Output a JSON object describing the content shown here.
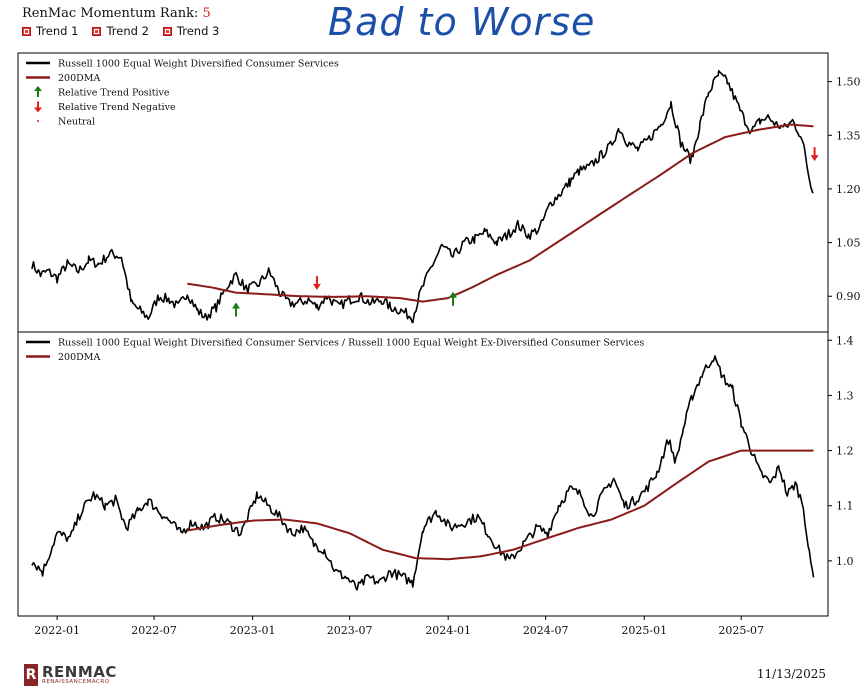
{
  "header": {
    "rank_label": "RenMac Momentum Rank:",
    "rank_value": "5",
    "trends": [
      "Trend 1",
      "Trend 2",
      "Trend 3"
    ],
    "annotation": "Bad to Worse"
  },
  "footer": {
    "logo_name": "RENMAC",
    "logo_sub": "RENAISSANCEMACRO",
    "date": "11/13/2025"
  },
  "colors": {
    "price": "#000000",
    "dma": "#8b1a1a",
    "positive": "#1a7a1a",
    "negative": "#e02020",
    "annotation": "#1c4fa8"
  },
  "chart_data": [
    {
      "type": "line",
      "legend": [
        {
          "label": "Russell 1000 Equal Weight Diversified Consumer Services",
          "style": "line",
          "color": "#000000"
        },
        {
          "label": "200DMA",
          "style": "line",
          "color": "#8b1a1a"
        },
        {
          "label": "Relative Trend Positive",
          "style": "up-arrow",
          "color": "#1a7a1a"
        },
        {
          "label": "Relative Trend Negative",
          "style": "down-arrow",
          "color": "#e02020"
        },
        {
          "label": "Neutral",
          "style": "dot",
          "color": "#e02020"
        }
      ],
      "legend_position": "top-left",
      "y_ticks": [
        "0.90",
        "1.05",
        "1.20",
        "1.35",
        "1.50"
      ],
      "y_tick_values": [
        0.9,
        1.05,
        1.2,
        1.35,
        1.5
      ],
      "ylim": [
        0.8,
        1.58
      ],
      "y_axis_side": "right",
      "series": [
        {
          "name": "Russell 1000 Equal Weight Diversified Consumer Services",
          "kind": "price",
          "points": [
            [
              "2021-11-15",
              0.99
            ],
            [
              "2021-12-01",
              0.96
            ],
            [
              "2021-12-15",
              0.97
            ],
            [
              "2022-01-01",
              0.95
            ],
            [
              "2022-01-20",
              0.99
            ],
            [
              "2022-02-10",
              0.97
            ],
            [
              "2022-03-01",
              1.0
            ],
            [
              "2022-03-20",
              0.99
            ],
            [
              "2022-04-10",
              1.02
            ],
            [
              "2022-05-01",
              1.01
            ],
            [
              "2022-05-20",
              0.88
            ],
            [
              "2022-06-05",
              0.86
            ],
            [
              "2022-06-20",
              0.84
            ],
            [
              "2022-07-10",
              0.9
            ],
            [
              "2022-07-30",
              0.89
            ],
            [
              "2022-08-15",
              0.87
            ],
            [
              "2022-09-01",
              0.91
            ],
            [
              "2022-09-20",
              0.86
            ],
            [
              "2022-10-05",
              0.84
            ],
            [
              "2022-10-25",
              0.87
            ],
            [
              "2022-11-15",
              0.93
            ],
            [
              "2022-12-01",
              0.96
            ],
            [
              "2022-12-20",
              0.92
            ],
            [
              "2023-01-10",
              0.93
            ],
            [
              "2023-02-01",
              0.97
            ],
            [
              "2023-02-20",
              0.91
            ],
            [
              "2023-03-10",
              0.88
            ],
            [
              "2023-03-25",
              0.88
            ],
            [
              "2023-04-15",
              0.89
            ],
            [
              "2023-05-01",
              0.87
            ],
            [
              "2023-05-20",
              0.9
            ],
            [
              "2023-06-10",
              0.87
            ],
            [
              "2023-06-30",
              0.89
            ],
            [
              "2023-07-20",
              0.9
            ],
            [
              "2023-08-10",
              0.88
            ],
            [
              "2023-08-30",
              0.89
            ],
            [
              "2023-09-15",
              0.87
            ],
            [
              "2023-10-05",
              0.86
            ],
            [
              "2023-10-27",
              0.84
            ],
            [
              "2023-11-10",
              0.91
            ],
            [
              "2023-11-30",
              0.98
            ],
            [
              "2023-12-20",
              1.04
            ],
            [
              "2024-01-10",
              1.01
            ],
            [
              "2024-02-01",
              1.05
            ],
            [
              "2024-02-20",
              1.06
            ],
            [
              "2024-03-10",
              1.08
            ],
            [
              "2024-04-01",
              1.05
            ],
            [
              "2024-04-20",
              1.07
            ],
            [
              "2024-05-10",
              1.1
            ],
            [
              "2024-05-30",
              1.07
            ],
            [
              "2024-06-20",
              1.09
            ],
            [
              "2024-07-10",
              1.16
            ],
            [
              "2024-07-30",
              1.19
            ],
            [
              "2024-08-15",
              1.22
            ],
            [
              "2024-09-01",
              1.25
            ],
            [
              "2024-09-20",
              1.26
            ],
            [
              "2024-10-10",
              1.29
            ],
            [
              "2024-10-30",
              1.32
            ],
            [
              "2024-11-15",
              1.37
            ],
            [
              "2024-12-01",
              1.33
            ],
            [
              "2024-12-20",
              1.31
            ],
            [
              "2025-01-10",
              1.34
            ],
            [
              "2025-02-01",
              1.38
            ],
            [
              "2025-02-20",
              1.44
            ],
            [
              "2025-03-10",
              1.33
            ],
            [
              "2025-03-30",
              1.28
            ],
            [
              "2025-04-15",
              1.38
            ],
            [
              "2025-05-01",
              1.47
            ],
            [
              "2025-05-20",
              1.52
            ],
            [
              "2025-06-05",
              1.5
            ],
            [
              "2025-06-20",
              1.45
            ],
            [
              "2025-07-05",
              1.4
            ],
            [
              "2025-07-20",
              1.36
            ],
            [
              "2025-08-05",
              1.39
            ],
            [
              "2025-08-20",
              1.4
            ],
            [
              "2025-09-05",
              1.38
            ],
            [
              "2025-09-20",
              1.37
            ],
            [
              "2025-10-05",
              1.39
            ],
            [
              "2025-10-20",
              1.35
            ],
            [
              "2025-10-28",
              1.3
            ],
            [
              "2025-11-05",
              1.23
            ],
            [
              "2025-11-13",
              1.19
            ]
          ]
        },
        {
          "name": "200DMA",
          "kind": "dma",
          "points": [
            [
              "2022-09-01",
              0.935
            ],
            [
              "2022-10-15",
              0.925
            ],
            [
              "2022-12-01",
              0.91
            ],
            [
              "2023-02-01",
              0.905
            ],
            [
              "2023-04-01",
              0.9
            ],
            [
              "2023-06-01",
              0.898
            ],
            [
              "2023-08-01",
              0.9
            ],
            [
              "2023-10-01",
              0.895
            ],
            [
              "2023-11-15",
              0.885
            ],
            [
              "2024-01-01",
              0.895
            ],
            [
              "2024-02-15",
              0.925
            ],
            [
              "2024-04-01",
              0.96
            ],
            [
              "2024-06-01",
              1.0
            ],
            [
              "2024-08-01",
              1.06
            ],
            [
              "2024-10-01",
              1.12
            ],
            [
              "2024-12-01",
              1.18
            ],
            [
              "2025-02-01",
              1.24
            ],
            [
              "2025-04-01",
              1.3
            ],
            [
              "2025-06-01",
              1.345
            ],
            [
              "2025-08-01",
              1.365
            ],
            [
              "2025-10-01",
              1.38
            ],
            [
              "2025-11-13",
              1.375
            ]
          ]
        }
      ],
      "signals": [
        {
          "type": "positive",
          "date": "2022-12-01",
          "value": 0.86
        },
        {
          "type": "negative",
          "date": "2023-05-01",
          "value": 0.94
        },
        {
          "type": "positive",
          "date": "2024-01-10",
          "value": 0.89
        },
        {
          "type": "negative",
          "date": "2025-11-15",
          "value": 1.3
        }
      ]
    },
    {
      "type": "line",
      "legend": [
        {
          "label": "Russell 1000 Equal Weight Diversified Consumer Services / Russell 1000 Equal Weight Ex-Diversified Consumer Services",
          "style": "line",
          "color": "#000000"
        },
        {
          "label": "200DMA",
          "style": "line",
          "color": "#8b1a1a"
        }
      ],
      "legend_position": "top-left",
      "y_ticks": [
        "1.0",
        "1.1",
        "1.2",
        "1.3",
        "1.4"
      ],
      "y_tick_values": [
        1.0,
        1.1,
        1.2,
        1.3,
        1.4
      ],
      "ylim": [
        0.9,
        1.415
      ],
      "y_axis_side": "right",
      "series": [
        {
          "name": "Russell 1000 Equal Weight Diversified Consumer Services / Russell 1000 Equal Weight Ex-Diversified Consumer Services",
          "kind": "price",
          "points": [
            [
              "2021-11-15",
              1.0
            ],
            [
              "2021-12-05",
              0.98
            ],
            [
              "2022-01-01",
              1.05
            ],
            [
              "2022-01-25",
              1.04
            ],
            [
              "2022-02-15",
              1.09
            ],
            [
              "2022-03-10",
              1.12
            ],
            [
              "2022-04-01",
              1.1
            ],
            [
              "2022-04-20",
              1.11
            ],
            [
              "2022-05-10",
              1.06
            ],
            [
              "2022-06-01",
              1.09
            ],
            [
              "2022-06-20",
              1.11
            ],
            [
              "2022-07-10",
              1.09
            ],
            [
              "2022-08-01",
              1.07
            ],
            [
              "2022-08-20",
              1.05
            ],
            [
              "2022-09-10",
              1.07
            ],
            [
              "2022-10-01",
              1.06
            ],
            [
              "2022-10-25",
              1.08
            ],
            [
              "2022-11-15",
              1.07
            ],
            [
              "2022-12-10",
              1.05
            ],
            [
              "2023-01-10",
              1.12
            ],
            [
              "2023-01-30",
              1.1
            ],
            [
              "2023-02-20",
              1.08
            ],
            [
              "2023-03-15",
              1.05
            ],
            [
              "2023-04-05",
              1.06
            ],
            [
              "2023-04-25",
              1.03
            ],
            [
              "2023-05-15",
              1.02
            ],
            [
              "2023-06-05",
              0.98
            ],
            [
              "2023-06-25",
              0.97
            ],
            [
              "2023-07-15",
              0.95
            ],
            [
              "2023-08-05",
              0.97
            ],
            [
              "2023-08-25",
              0.96
            ],
            [
              "2023-09-15",
              0.98
            ],
            [
              "2023-10-10",
              0.97
            ],
            [
              "2023-10-27",
              0.96
            ],
            [
              "2023-11-15",
              1.06
            ],
            [
              "2023-12-10",
              1.09
            ],
            [
              "2024-01-05",
              1.06
            ],
            [
              "2024-02-01",
              1.07
            ],
            [
              "2024-02-25",
              1.08
            ],
            [
              "2024-03-15",
              1.05
            ],
            [
              "2024-04-05",
              1.02
            ],
            [
              "2024-04-25",
              1.0
            ],
            [
              "2024-05-20",
              1.03
            ],
            [
              "2024-06-15",
              1.06
            ],
            [
              "2024-07-05",
              1.05
            ],
            [
              "2024-07-25",
              1.1
            ],
            [
              "2024-08-15",
              1.13
            ],
            [
              "2024-09-05",
              1.12
            ],
            [
              "2024-09-25",
              1.08
            ],
            [
              "2024-10-15",
              1.12
            ],
            [
              "2024-11-05",
              1.15
            ],
            [
              "2024-11-25",
              1.1
            ],
            [
              "2024-12-15",
              1.11
            ],
            [
              "2025-01-05",
              1.13
            ],
            [
              "2025-01-25",
              1.16
            ],
            [
              "2025-02-15",
              1.22
            ],
            [
              "2025-03-01",
              1.18
            ],
            [
              "2025-03-15",
              1.24
            ],
            [
              "2025-04-01",
              1.3
            ],
            [
              "2025-04-20",
              1.34
            ],
            [
              "2025-05-10",
              1.37
            ],
            [
              "2025-05-30",
              1.33
            ],
            [
              "2025-06-15",
              1.31
            ],
            [
              "2025-07-01",
              1.25
            ],
            [
              "2025-07-20",
              1.2
            ],
            [
              "2025-08-05",
              1.16
            ],
            [
              "2025-08-25",
              1.14
            ],
            [
              "2025-09-10",
              1.17
            ],
            [
              "2025-09-25",
              1.12
            ],
            [
              "2025-10-10",
              1.14
            ],
            [
              "2025-10-25",
              1.1
            ],
            [
              "2025-11-05",
              1.01
            ],
            [
              "2025-11-13",
              0.97
            ]
          ]
        },
        {
          "name": "200DMA",
          "kind": "dma",
          "points": [
            [
              "2022-09-01",
              1.055
            ],
            [
              "2022-11-01",
              1.065
            ],
            [
              "2023-01-01",
              1.073
            ],
            [
              "2023-03-01",
              1.075
            ],
            [
              "2023-05-01",
              1.068
            ],
            [
              "2023-07-01",
              1.05
            ],
            [
              "2023-09-01",
              1.02
            ],
            [
              "2023-11-01",
              1.005
            ],
            [
              "2024-01-01",
              1.003
            ],
            [
              "2024-03-01",
              1.008
            ],
            [
              "2024-05-01",
              1.02
            ],
            [
              "2024-07-01",
              1.04
            ],
            [
              "2024-09-01",
              1.06
            ],
            [
              "2024-11-01",
              1.075
            ],
            [
              "2025-01-01",
              1.1
            ],
            [
              "2025-03-01",
              1.14
            ],
            [
              "2025-05-01",
              1.18
            ],
            [
              "2025-07-01",
              1.2
            ],
            [
              "2025-09-01",
              1.2
            ],
            [
              "2025-11-13",
              1.2
            ]
          ]
        }
      ]
    }
  ],
  "x_axis": {
    "tick_labels": [
      "2022-01",
      "2022-07",
      "2023-01",
      "2023-07",
      "2024-01",
      "2024-07",
      "2025-01",
      "2025-07"
    ],
    "tick_dates": [
      "2022-01-01",
      "2022-07-01",
      "2023-01-01",
      "2023-07-01",
      "2024-01-01",
      "2024-07-01",
      "2025-01-01",
      "2025-07-01"
    ],
    "range": [
      "2021-10-20",
      "2025-12-10"
    ]
  }
}
